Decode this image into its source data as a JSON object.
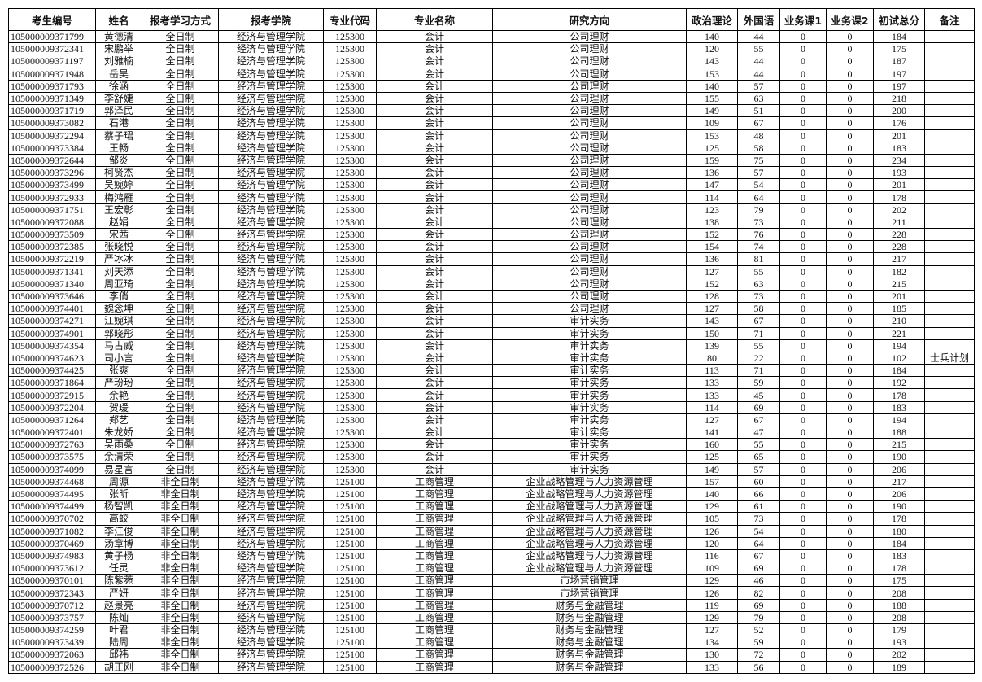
{
  "headers": [
    "考生编号",
    "姓名",
    "报考学习方式",
    "报考学院",
    "专业代码",
    "专业名称",
    "研究方向",
    "政治理论",
    "外国语",
    "业务课1",
    "业务课2",
    "初试总分",
    "备注"
  ],
  "rows": [
    [
      "105000009371799",
      "黄德清",
      "全日制",
      "经济与管理学院",
      "125300",
      "会计",
      "公司理财",
      "140",
      "44",
      "0",
      "0",
      "184",
      ""
    ],
    [
      "105000009372341",
      "宋鹏举",
      "全日制",
      "经济与管理学院",
      "125300",
      "会计",
      "公司理财",
      "120",
      "55",
      "0",
      "0",
      "175",
      ""
    ],
    [
      "105000009371197",
      "刘雅楠",
      "全日制",
      "经济与管理学院",
      "125300",
      "会计",
      "公司理财",
      "143",
      "44",
      "0",
      "0",
      "187",
      ""
    ],
    [
      "105000009371948",
      "岳昊",
      "全日制",
      "经济与管理学院",
      "125300",
      "会计",
      "公司理财",
      "153",
      "44",
      "0",
      "0",
      "197",
      ""
    ],
    [
      "105000009371793",
      "徐涵",
      "全日制",
      "经济与管理学院",
      "125300",
      "会计",
      "公司理财",
      "140",
      "57",
      "0",
      "0",
      "197",
      ""
    ],
    [
      "105000009371349",
      "李舒婕",
      "全日制",
      "经济与管理学院",
      "125300",
      "会计",
      "公司理财",
      "155",
      "63",
      "0",
      "0",
      "218",
      ""
    ],
    [
      "105000009371719",
      "郭泽民",
      "全日制",
      "经济与管理学院",
      "125300",
      "会计",
      "公司理财",
      "149",
      "51",
      "0",
      "0",
      "200",
      ""
    ],
    [
      "105000009373082",
      "石港",
      "全日制",
      "经济与管理学院",
      "125300",
      "会计",
      "公司理财",
      "109",
      "67",
      "0",
      "0",
      "176",
      ""
    ],
    [
      "105000009372294",
      "蔡子珺",
      "全日制",
      "经济与管理学院",
      "125300",
      "会计",
      "公司理财",
      "153",
      "48",
      "0",
      "0",
      "201",
      ""
    ],
    [
      "105000009373384",
      "王畅",
      "全日制",
      "经济与管理学院",
      "125300",
      "会计",
      "公司理财",
      "125",
      "58",
      "0",
      "0",
      "183",
      ""
    ],
    [
      "105000009372644",
      "邹炎",
      "全日制",
      "经济与管理学院",
      "125300",
      "会计",
      "公司理财",
      "159",
      "75",
      "0",
      "0",
      "234",
      ""
    ],
    [
      "105000009373296",
      "柯贤杰",
      "全日制",
      "经济与管理学院",
      "125300",
      "会计",
      "公司理财",
      "136",
      "57",
      "0",
      "0",
      "193",
      ""
    ],
    [
      "105000009373499",
      "吴婉婷",
      "全日制",
      "经济与管理学院",
      "125300",
      "会计",
      "公司理财",
      "147",
      "54",
      "0",
      "0",
      "201",
      ""
    ],
    [
      "105000009372933",
      "梅鸿雁",
      "全日制",
      "经济与管理学院",
      "125300",
      "会计",
      "公司理财",
      "114",
      "64",
      "0",
      "0",
      "178",
      ""
    ],
    [
      "105000009371751",
      "王宏彰",
      "全日制",
      "经济与管理学院",
      "125300",
      "会计",
      "公司理财",
      "123",
      "79",
      "0",
      "0",
      "202",
      ""
    ],
    [
      "105000009372088",
      "赵娟",
      "全日制",
      "经济与管理学院",
      "125300",
      "会计",
      "公司理财",
      "138",
      "73",
      "0",
      "0",
      "211",
      ""
    ],
    [
      "105000009373509",
      "宋茜",
      "全日制",
      "经济与管理学院",
      "125300",
      "会计",
      "公司理财",
      "152",
      "76",
      "0",
      "0",
      "228",
      ""
    ],
    [
      "105000009372385",
      "张晓悦",
      "全日制",
      "经济与管理学院",
      "125300",
      "会计",
      "公司理财",
      "154",
      "74",
      "0",
      "0",
      "228",
      ""
    ],
    [
      "105000009372219",
      "严冰冰",
      "全日制",
      "经济与管理学院",
      "125300",
      "会计",
      "公司理财",
      "136",
      "81",
      "0",
      "0",
      "217",
      ""
    ],
    [
      "105000009371341",
      "刘天添",
      "全日制",
      "经济与管理学院",
      "125300",
      "会计",
      "公司理财",
      "127",
      "55",
      "0",
      "0",
      "182",
      ""
    ],
    [
      "105000009371340",
      "周亚琦",
      "全日制",
      "经济与管理学院",
      "125300",
      "会计",
      "公司理财",
      "152",
      "63",
      "0",
      "0",
      "215",
      ""
    ],
    [
      "105000009373646",
      "李俏",
      "全日制",
      "经济与管理学院",
      "125300",
      "会计",
      "公司理财",
      "128",
      "73",
      "0",
      "0",
      "201",
      ""
    ],
    [
      "105000009374401",
      "魏念坤",
      "全日制",
      "经济与管理学院",
      "125300",
      "会计",
      "公司理财",
      "127",
      "58",
      "0",
      "0",
      "185",
      ""
    ],
    [
      "105000009374271",
      "江婉琪",
      "全日制",
      "经济与管理学院",
      "125300",
      "会计",
      "审计实务",
      "143",
      "67",
      "0",
      "0",
      "210",
      ""
    ],
    [
      "105000009374901",
      "郭晓彤",
      "全日制",
      "经济与管理学院",
      "125300",
      "会计",
      "审计实务",
      "150",
      "71",
      "0",
      "0",
      "221",
      ""
    ],
    [
      "105000009374354",
      "马占威",
      "全日制",
      "经济与管理学院",
      "125300",
      "会计",
      "审计实务",
      "139",
      "55",
      "0",
      "0",
      "194",
      ""
    ],
    [
      "105000009374623",
      "司小言",
      "全日制",
      "经济与管理学院",
      "125300",
      "会计",
      "审计实务",
      "80",
      "22",
      "0",
      "0",
      "102",
      "士兵计划"
    ],
    [
      "105000009374425",
      "张爽",
      "全日制",
      "经济与管理学院",
      "125300",
      "会计",
      "审计实务",
      "113",
      "71",
      "0",
      "0",
      "184",
      ""
    ],
    [
      "105000009371864",
      "严玢玢",
      "全日制",
      "经济与管理学院",
      "125300",
      "会计",
      "审计实务",
      "133",
      "59",
      "0",
      "0",
      "192",
      ""
    ],
    [
      "105000009372915",
      "余艳",
      "全日制",
      "经济与管理学院",
      "125300",
      "会计",
      "审计实务",
      "133",
      "45",
      "0",
      "0",
      "178",
      ""
    ],
    [
      "105000009372204",
      "贺瑗",
      "全日制",
      "经济与管理学院",
      "125300",
      "会计",
      "审计实务",
      "114",
      "69",
      "0",
      "0",
      "183",
      ""
    ],
    [
      "105000009371264",
      "郑艺",
      "全日制",
      "经济与管理学院",
      "125300",
      "会计",
      "审计实务",
      "127",
      "67",
      "0",
      "0",
      "194",
      ""
    ],
    [
      "105000009372401",
      "朱龙娇",
      "全日制",
      "经济与管理学院",
      "125300",
      "会计",
      "审计实务",
      "141",
      "47",
      "0",
      "0",
      "188",
      ""
    ],
    [
      "105000009372763",
      "吴雨桑",
      "全日制",
      "经济与管理学院",
      "125300",
      "会计",
      "审计实务",
      "160",
      "55",
      "0",
      "0",
      "215",
      ""
    ],
    [
      "105000009373575",
      "余清荣",
      "全日制",
      "经济与管理学院",
      "125300",
      "会计",
      "审计实务",
      "125",
      "65",
      "0",
      "0",
      "190",
      ""
    ],
    [
      "105000009374099",
      "易星言",
      "全日制",
      "经济与管理学院",
      "125300",
      "会计",
      "审计实务",
      "149",
      "57",
      "0",
      "0",
      "206",
      ""
    ],
    [
      "105000009374468",
      "周源",
      "非全日制",
      "经济与管理学院",
      "125100",
      "工商管理",
      "企业战略管理与人力资源管理",
      "157",
      "60",
      "0",
      "0",
      "217",
      ""
    ],
    [
      "105000009374495",
      "张昕",
      "非全日制",
      "经济与管理学院",
      "125100",
      "工商管理",
      "企业战略管理与人力资源管理",
      "140",
      "66",
      "0",
      "0",
      "206",
      ""
    ],
    [
      "105000009374499",
      "杨智凯",
      "非全日制",
      "经济与管理学院",
      "125100",
      "工商管理",
      "企业战略管理与人力资源管理",
      "129",
      "61",
      "0",
      "0",
      "190",
      ""
    ],
    [
      "105000009370702",
      "高蛟",
      "非全日制",
      "经济与管理学院",
      "125100",
      "工商管理",
      "企业战略管理与人力资源管理",
      "105",
      "73",
      "0",
      "0",
      "178",
      ""
    ],
    [
      "105000009371082",
      "李江俊",
      "非全日制",
      "经济与管理学院",
      "125100",
      "工商管理",
      "企业战略管理与人力资源管理",
      "126",
      "54",
      "0",
      "0",
      "180",
      ""
    ],
    [
      "105000009370469",
      "汤章博",
      "非全日制",
      "经济与管理学院",
      "125100",
      "工商管理",
      "企业战略管理与人力资源管理",
      "120",
      "64",
      "0",
      "0",
      "184",
      ""
    ],
    [
      "105000009374983",
      "黄子杨",
      "非全日制",
      "经济与管理学院",
      "125100",
      "工商管理",
      "企业战略管理与人力资源管理",
      "116",
      "67",
      "0",
      "0",
      "183",
      ""
    ],
    [
      "105000009373612",
      "任灵",
      "非全日制",
      "经济与管理学院",
      "125100",
      "工商管理",
      "企业战略管理与人力资源管理",
      "109",
      "69",
      "0",
      "0",
      "178",
      ""
    ],
    [
      "105000009370101",
      "陈紫菀",
      "非全日制",
      "经济与管理学院",
      "125100",
      "工商管理",
      "市场营销管理",
      "129",
      "46",
      "0",
      "0",
      "175",
      ""
    ],
    [
      "105000009372343",
      "严妍",
      "非全日制",
      "经济与管理学院",
      "125100",
      "工商管理",
      "市场营销管理",
      "126",
      "82",
      "0",
      "0",
      "208",
      ""
    ],
    [
      "105000009370712",
      "赵景亮",
      "非全日制",
      "经济与管理学院",
      "125100",
      "工商管理",
      "财务与金融管理",
      "119",
      "69",
      "0",
      "0",
      "188",
      ""
    ],
    [
      "105000009373757",
      "陈灿",
      "非全日制",
      "经济与管理学院",
      "125100",
      "工商管理",
      "财务与金融管理",
      "129",
      "79",
      "0",
      "0",
      "208",
      ""
    ],
    [
      "105000009374259",
      "叶君",
      "非全日制",
      "经济与管理学院",
      "125100",
      "工商管理",
      "财务与金融管理",
      "127",
      "52",
      "0",
      "0",
      "179",
      ""
    ],
    [
      "105000009373439",
      "陆周",
      "非全日制",
      "经济与管理学院",
      "125100",
      "工商管理",
      "财务与金融管理",
      "134",
      "59",
      "0",
      "0",
      "193",
      ""
    ],
    [
      "105000009372063",
      "邱祎",
      "非全日制",
      "经济与管理学院",
      "125100",
      "工商管理",
      "财务与金融管理",
      "130",
      "72",
      "0",
      "0",
      "202",
      ""
    ],
    [
      "105000009372526",
      "胡正刚",
      "非全日制",
      "经济与管理学院",
      "125100",
      "工商管理",
      "财务与金融管理",
      "133",
      "56",
      "0",
      "0",
      "189",
      ""
    ]
  ]
}
